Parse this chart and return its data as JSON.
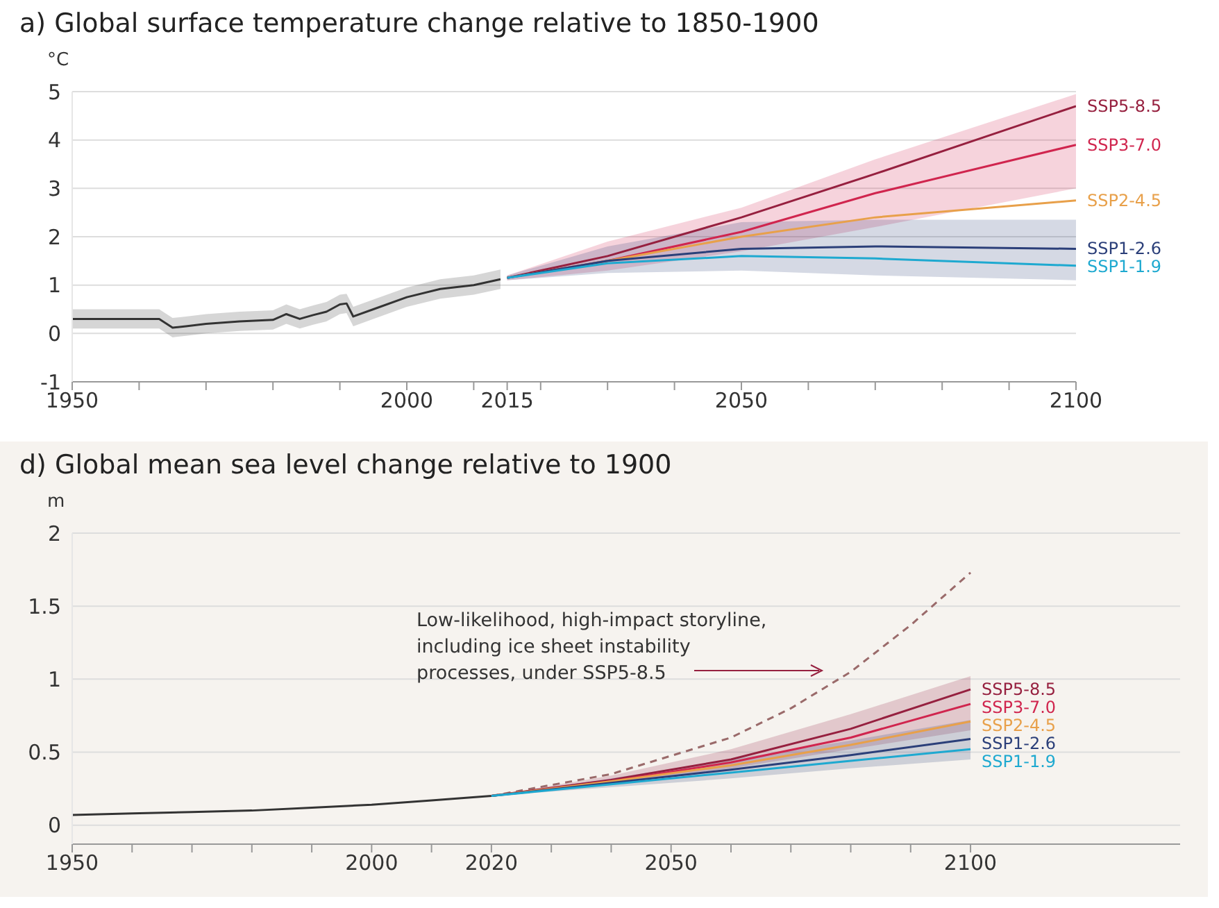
{
  "chart_data": [
    {
      "type": "line",
      "title": "a) Global surface temperature change relative to 1850-1900",
      "ylabel": "°C",
      "xlim": [
        1950,
        2100
      ],
      "ylim": [
        -1,
        5
      ],
      "grid": "y",
      "xticks": [
        1950,
        {
          "value": 1960,
          "label": null
        },
        {
          "value": 1970,
          "label": null
        },
        {
          "value": 1980,
          "label": null
        },
        {
          "value": 1990,
          "label": null
        },
        2000,
        {
          "value": 2010,
          "label": null
        },
        2015,
        {
          "value": 2020,
          "label": null
        },
        {
          "value": 2030,
          "label": null
        },
        {
          "value": 2040,
          "label": null
        },
        2050,
        {
          "value": 2060,
          "label": null
        },
        {
          "value": 2070,
          "label": null
        },
        {
          "value": 2080,
          "label": null
        },
        {
          "value": 2090,
          "label": null
        },
        2100
      ],
      "yticks": [
        -1,
        0,
        1,
        2,
        3,
        4,
        5
      ],
      "series": [
        {
          "color": "#333333",
          "x": [
            1950,
            1955,
            1960,
            1963,
            1965,
            1967,
            1970,
            1975,
            1980,
            1982,
            1984,
            1986,
            1988,
            1990,
            1991,
            1992,
            1995,
            2000,
            2005,
            2010,
            2014
          ],
          "values": [
            0.3,
            0.3,
            0.3,
            0.3,
            0.12,
            0.15,
            0.2,
            0.25,
            0.28,
            0.4,
            0.3,
            0.38,
            0.45,
            0.6,
            0.62,
            0.35,
            0.5,
            0.75,
            0.92,
            1.0,
            1.12
          ],
          "lower": [
            0.1,
            0.1,
            0.1,
            0.1,
            -0.08,
            -0.05,
            0.0,
            0.05,
            0.08,
            0.2,
            0.1,
            0.18,
            0.25,
            0.4,
            0.42,
            0.15,
            0.3,
            0.55,
            0.72,
            0.8,
            0.92
          ],
          "upper": [
            0.5,
            0.5,
            0.5,
            0.5,
            0.32,
            0.35,
            0.4,
            0.45,
            0.48,
            0.6,
            0.5,
            0.58,
            0.65,
            0.8,
            0.82,
            0.55,
            0.7,
            0.95,
            1.12,
            1.2,
            1.32
          ]
        },
        {
          "name": "SSP5-8.5",
          "color": "#96203f",
          "x": [
            2015,
            2030,
            2050,
            2070,
            2100
          ],
          "values": [
            1.15,
            1.6,
            2.4,
            3.3,
            4.7
          ]
        },
        {
          "name": "SSP3-7.0",
          "color": "#d0254e",
          "x": [
            2015,
            2030,
            2050,
            2070,
            2100
          ],
          "values": [
            1.15,
            1.5,
            2.1,
            2.9,
            3.9
          ],
          "lower": [
            1.1,
            1.3,
            1.7,
            2.2,
            3.0
          ],
          "upper": [
            1.2,
            1.9,
            2.6,
            3.6,
            4.95
          ]
        },
        {
          "name": "SSP2-4.5",
          "color": "#e8a04a",
          "x": [
            2015,
            2030,
            2050,
            2070,
            2100
          ],
          "values": [
            1.15,
            1.5,
            2.0,
            2.4,
            2.75
          ]
        },
        {
          "name": "SSP1-2.6",
          "color": "#2b3f79",
          "x": [
            2015,
            2030,
            2050,
            2070,
            2100
          ],
          "values": [
            1.15,
            1.5,
            1.75,
            1.8,
            1.75
          ],
          "lower": [
            1.1,
            1.25,
            1.3,
            1.2,
            1.1
          ],
          "upper": [
            1.2,
            1.8,
            2.3,
            2.35,
            2.35
          ]
        },
        {
          "name": "SSP1-1.9",
          "color": "#1ea9d0",
          "x": [
            2015,
            2030,
            2050,
            2070,
            2100
          ],
          "values": [
            1.15,
            1.45,
            1.6,
            1.55,
            1.4
          ]
        }
      ]
    },
    {
      "type": "line",
      "title": "d) Global mean sea level change relative to 1900",
      "ylabel": "m",
      "xlim": [
        1950,
        2135
      ],
      "ylim": [
        -0.13,
        2
      ],
      "grid": "y",
      "xticks": [
        1950,
        {
          "value": 1960,
          "label": null
        },
        {
          "value": 1970,
          "label": null
        },
        {
          "value": 1980,
          "label": null
        },
        {
          "value": 1990,
          "label": null
        },
        2000,
        {
          "value": 2010,
          "label": null
        },
        2020,
        {
          "value": 2030,
          "label": null
        },
        {
          "value": 2040,
          "label": null
        },
        2050,
        {
          "value": 2060,
          "label": null
        },
        {
          "value": 2070,
          "label": null
        },
        {
          "value": 2080,
          "label": null
        },
        {
          "value": 2090,
          "label": null
        },
        2100
      ],
      "yticks": [
        0,
        0.5,
        1,
        1.5,
        2
      ],
      "annotations": [
        "Low-likelihood, high-impact storyline, including ice sheet instability processes, under SSP5-8.5"
      ],
      "series": [
        {
          "color": "#333333",
          "x": [
            1950,
            1960,
            1970,
            1980,
            1990,
            2000,
            2010,
            2020
          ],
          "values": [
            0.07,
            0.08,
            0.09,
            0.1,
            0.12,
            0.14,
            0.17,
            0.2
          ]
        },
        {
          "color": "#9a6a6a",
          "line_style": "dashed",
          "x": [
            2020,
            2040,
            2060,
            2070,
            2080,
            2090,
            2100
          ],
          "values": [
            0.2,
            0.35,
            0.6,
            0.8,
            1.05,
            1.37,
            1.73
          ]
        },
        {
          "name": "SSP5-8.5",
          "color": "#96203f",
          "x": [
            2020,
            2040,
            2060,
            2080,
            2100
          ],
          "values": [
            0.2,
            0.31,
            0.45,
            0.66,
            0.93
          ],
          "lower": [
            0.2,
            0.28,
            0.39,
            0.52,
            0.65
          ],
          "upper": [
            0.2,
            0.34,
            0.52,
            0.76,
            1.02
          ]
        },
        {
          "name": "SSP3-7.0",
          "color": "#d0254e",
          "x": [
            2020,
            2040,
            2060,
            2080,
            2100
          ],
          "values": [
            0.2,
            0.3,
            0.43,
            0.6,
            0.83
          ]
        },
        {
          "name": "SSP2-4.5",
          "color": "#e8a04a",
          "x": [
            2020,
            2040,
            2060,
            2080,
            2100
          ],
          "values": [
            0.2,
            0.3,
            0.41,
            0.55,
            0.71
          ]
        },
        {
          "name": "SSP1-2.6",
          "color": "#2b3f79",
          "x": [
            2020,
            2040,
            2060,
            2080,
            2100
          ],
          "values": [
            0.2,
            0.29,
            0.38,
            0.48,
            0.59
          ],
          "lower": [
            0.2,
            0.26,
            0.32,
            0.39,
            0.45
          ],
          "upper": [
            0.2,
            0.32,
            0.45,
            0.58,
            0.72
          ]
        },
        {
          "name": "SSP1-1.9",
          "color": "#1ea9d0",
          "x": [
            2020,
            2040,
            2060,
            2080,
            2100
          ],
          "values": [
            0.2,
            0.28,
            0.36,
            0.44,
            0.52
          ]
        }
      ]
    }
  ]
}
